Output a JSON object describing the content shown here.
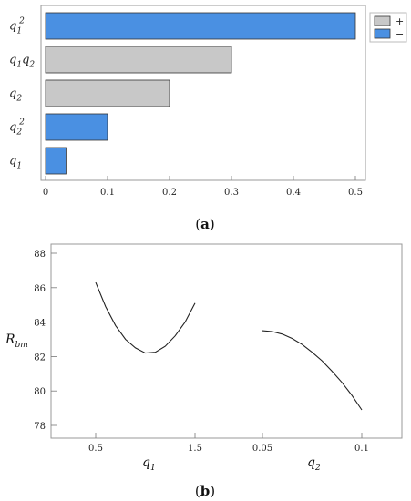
{
  "chart_data": [
    {
      "type": "bar",
      "orientation": "horizontal",
      "caption_letter": "a",
      "categories": [
        {
          "base": "q",
          "sub": "1",
          "sup": "2"
        },
        {
          "base": "q",
          "sub": "1",
          "base2": "q",
          "sub2": "2"
        },
        {
          "base": "q",
          "sub": "2"
        },
        {
          "base": "q",
          "sub": "2",
          "sup": "2"
        },
        {
          "base": "q",
          "sub": "1"
        }
      ],
      "values": [
        0.5,
        0.3,
        0.2,
        0.1,
        0.033
      ],
      "signs": [
        "−",
        "+",
        "+",
        "−",
        "−"
      ],
      "xlim": [
        0,
        0.5
      ],
      "xticks": [
        "0",
        "0.1",
        "0.2",
        "0.3",
        "0.4",
        "0.5"
      ],
      "grid": false,
      "legend_position": "top-right",
      "legend": [
        {
          "label": "+",
          "color": "#c8c8c8"
        },
        {
          "label": "−",
          "color": "#4a90e2"
        }
      ],
      "colors": {
        "+": "#c8c8c8",
        "−": "#4a90e2"
      }
    },
    {
      "type": "line",
      "caption_letter": "b",
      "ylabel": {
        "base": "R",
        "sub": "bm"
      },
      "ylim": [
        77.5,
        88.5
      ],
      "yticks": [
        "78",
        "80",
        "82",
        "84",
        "86",
        "88"
      ],
      "grid": false,
      "panels": [
        {
          "xlabel": {
            "base": "q",
            "sub": "1"
          },
          "xticks": [
            "0.5",
            "1.5"
          ],
          "x": [
            0.5,
            0.6,
            0.7,
            0.8,
            0.9,
            1.0,
            1.1,
            1.2,
            1.3,
            1.4,
            1.5
          ],
          "y": [
            86.3,
            84.9,
            83.8,
            83.0,
            82.5,
            82.2,
            82.25,
            82.6,
            83.2,
            84.0,
            85.1
          ]
        },
        {
          "xlabel": {
            "base": "q",
            "sub": "2"
          },
          "xticks": [
            "0.05",
            "0.1"
          ],
          "x": [
            0.05,
            0.055,
            0.06,
            0.065,
            0.07,
            0.075,
            0.08,
            0.085,
            0.09,
            0.095,
            0.1
          ],
          "y": [
            83.5,
            83.45,
            83.3,
            83.05,
            82.7,
            82.25,
            81.75,
            81.15,
            80.5,
            79.75,
            78.9
          ]
        }
      ]
    }
  ]
}
